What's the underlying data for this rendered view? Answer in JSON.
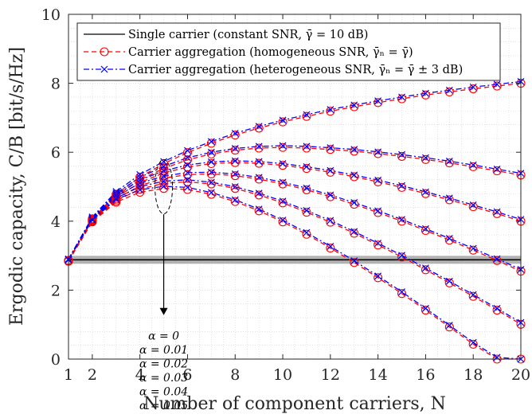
{
  "chart_data": {
    "type": "line",
    "xlabel": "Number of component carriers, N",
    "ylabel": "Ergodic capacity, C/B [bit/s/Hz]",
    "xlim": [
      1,
      20
    ],
    "ylim": [
      0,
      10
    ],
    "x_ticks": [
      1,
      2,
      4,
      6,
      8,
      10,
      12,
      14,
      16,
      18,
      20
    ],
    "y_ticks": [
      0,
      2,
      4,
      6,
      8,
      10
    ],
    "grid": "minor-dotted",
    "legend_position": "top",
    "legend": [
      {
        "label": "Single carrier (constant SNR, γ̄ = 10 dB)",
        "color": "#000000",
        "style": "solid",
        "marker": "none"
      },
      {
        "label": "Carrier aggregation (homogeneous SNR, γ̄ₙ = γ̄)",
        "color": "#ff0000",
        "style": "dashed",
        "marker": "circle"
      },
      {
        "label": "Carrier aggregation (heterogeneous SNR, γ̄ₙ = γ̄ ± 3 dB)",
        "color": "#0000ff",
        "style": "dashdot",
        "marker": "x"
      }
    ],
    "single_carrier_value": 2.88,
    "x": [
      1,
      2,
      3,
      4,
      5,
      6,
      7,
      8,
      9,
      10,
      11,
      12,
      13,
      14,
      15,
      16,
      17,
      18,
      19,
      20
    ],
    "series": [
      {
        "alpha": "0",
        "homogeneous": [
          2.86,
          4.07,
          4.78,
          5.28,
          5.67,
          5.99,
          6.26,
          6.5,
          6.7,
          6.88,
          7.04,
          7.19,
          7.32,
          7.44,
          7.55,
          7.66,
          7.75,
          7.84,
          7.92,
          8.0
        ],
        "heterogeneous": [
          2.9,
          4.12,
          4.86,
          5.35,
          5.73,
          6.05,
          6.31,
          6.55,
          6.75,
          6.93,
          7.09,
          7.24,
          7.37,
          7.49,
          7.6,
          7.71,
          7.8,
          7.89,
          7.97,
          8.05
        ]
      },
      {
        "alpha": "0.01",
        "homogeneous": [
          2.86,
          4.06,
          4.73,
          5.2,
          5.53,
          5.78,
          5.95,
          6.06,
          6.12,
          6.14,
          6.12,
          6.08,
          6.03,
          5.96,
          5.88,
          5.79,
          5.69,
          5.58,
          5.46,
          5.34
        ],
        "heterogeneous": [
          2.9,
          4.11,
          4.81,
          5.27,
          5.59,
          5.84,
          6.0,
          6.11,
          6.17,
          6.19,
          6.17,
          6.13,
          6.08,
          6.01,
          5.93,
          5.84,
          5.74,
          5.63,
          5.51,
          5.39
        ]
      },
      {
        "alpha": "0.02",
        "homogeneous": [
          2.85,
          4.04,
          4.69,
          5.12,
          5.4,
          5.57,
          5.67,
          5.7,
          5.68,
          5.62,
          5.53,
          5.42,
          5.29,
          5.14,
          4.98,
          4.8,
          4.62,
          4.42,
          4.22,
          4.0
        ],
        "heterogeneous": [
          2.89,
          4.09,
          4.77,
          5.19,
          5.46,
          5.63,
          5.72,
          5.75,
          5.73,
          5.67,
          5.58,
          5.47,
          5.34,
          5.19,
          5.03,
          4.85,
          4.67,
          4.47,
          4.27,
          4.05
        ]
      },
      {
        "alpha": "0.03",
        "homogeneous": [
          2.85,
          4.02,
          4.64,
          5.03,
          5.25,
          5.35,
          5.37,
          5.32,
          5.22,
          5.08,
          4.91,
          4.71,
          4.49,
          4.25,
          4.0,
          3.73,
          3.45,
          3.16,
          2.86,
          2.55
        ],
        "heterogeneous": [
          2.89,
          4.07,
          4.72,
          5.1,
          5.31,
          5.41,
          5.42,
          5.37,
          5.27,
          5.13,
          4.96,
          4.76,
          4.54,
          4.3,
          4.05,
          3.78,
          3.5,
          3.21,
          2.91,
          2.6
        ]
      },
      {
        "alpha": "0.04",
        "homogeneous": [
          2.84,
          4.0,
          4.59,
          4.93,
          5.1,
          5.14,
          5.08,
          4.95,
          4.76,
          4.53,
          4.26,
          3.97,
          3.65,
          3.31,
          2.96,
          2.59,
          2.21,
          1.82,
          1.42,
          1.01
        ],
        "heterogeneous": [
          2.88,
          4.05,
          4.67,
          5.0,
          5.16,
          5.2,
          5.13,
          5.0,
          4.81,
          4.58,
          4.31,
          4.02,
          3.7,
          3.36,
          3.01,
          2.64,
          2.26,
          1.87,
          1.47,
          1.06
        ]
      },
      {
        "alpha": "0.05",
        "homogeneous": [
          2.84,
          3.98,
          4.55,
          4.84,
          4.95,
          4.92,
          4.78,
          4.57,
          4.3,
          3.98,
          3.62,
          3.22,
          2.8,
          2.36,
          1.9,
          1.42,
          0.93,
          0.43,
          0.0,
          0.0
        ],
        "heterogeneous": [
          2.88,
          4.03,
          4.63,
          4.91,
          5.01,
          4.98,
          4.83,
          4.62,
          4.35,
          4.03,
          3.67,
          3.27,
          2.85,
          2.41,
          1.95,
          1.47,
          0.98,
          0.48,
          0.05,
          0.0
        ]
      }
    ],
    "annotation_labels": [
      "α = 0",
      "α = 0.01",
      "α = 0.02",
      "α = 0.03",
      "α = 0.04",
      "α = 0.05"
    ]
  }
}
